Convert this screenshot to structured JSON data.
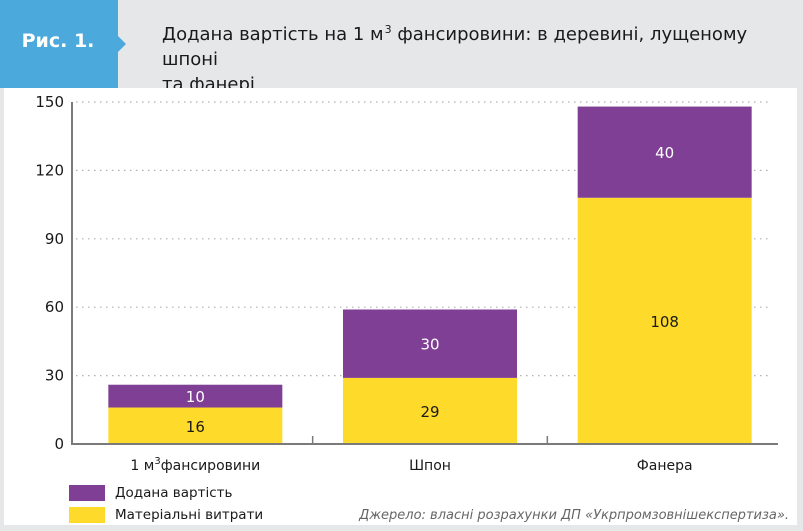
{
  "figure": {
    "tag": "Рис. 1.",
    "title_before_sup": "Додана вартість на 1 м",
    "title_sup": "3",
    "title_after_sup": " фансировини: в деревині, лущеному шпоні",
    "title_line2": "та фанері",
    "source": "Джерело: власні розрахунки ДП «Укрпромзовнішекспертиза»."
  },
  "colors": {
    "tag_bg": "#4ba9dc",
    "header_bg": "#e6e7e9",
    "added_value": "#7e3f94",
    "material_costs": "#fedb2b",
    "axis": "#7a7a7a",
    "grid": "#b0b0b0"
  },
  "chart_data": {
    "type": "bar",
    "stacked": true,
    "title": "Додана вартість на 1 м3 фансировини: в деревині, лущеному шпоні та фанері",
    "xlabel": "",
    "ylabel": "",
    "ylim": [
      0,
      150
    ],
    "yticks": [
      0,
      30,
      60,
      90,
      120,
      150
    ],
    "grid": true,
    "legend_position": "bottom-left",
    "categories": [
      "1 м³ фансировини",
      "Шпон",
      "Фанера"
    ],
    "category_parts": [
      {
        "base": "1 м",
        "sup": "3",
        "rest": "фансировини"
      },
      {
        "base": "Шпон",
        "sup": "",
        "rest": ""
      },
      {
        "base": "Фанера",
        "sup": "",
        "rest": ""
      }
    ],
    "series": [
      {
        "name": "Матеріальні витрати",
        "color": "#fedb2b",
        "label_color": "#1a1a1a",
        "values": [
          16,
          29,
          108
        ]
      },
      {
        "name": "Додана вартість",
        "color": "#7e3f94",
        "label_color": "#ffffff",
        "values": [
          10,
          30,
          40
        ]
      }
    ],
    "legend": [
      {
        "name": "Додана вартість",
        "color": "#7e3f94"
      },
      {
        "name": "Матеріальні витрати",
        "color": "#fedb2b"
      }
    ]
  }
}
